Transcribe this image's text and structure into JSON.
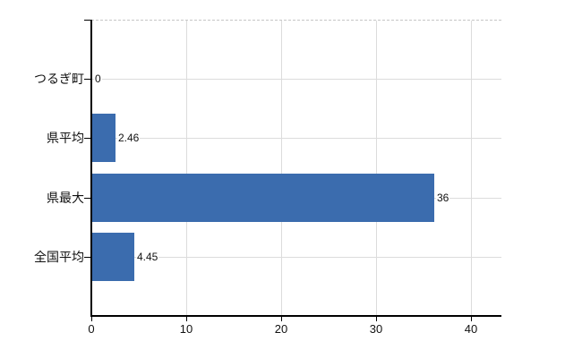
{
  "chart_data": {
    "type": "bar",
    "orientation": "horizontal",
    "title": "",
    "xlabel": "",
    "ylabel": "",
    "categories": [
      "つるぎ町",
      "県平均",
      "県最大",
      "全国平均"
    ],
    "values": [
      0,
      2.46,
      36,
      4.45
    ],
    "data_labels": [
      "0",
      "2.46",
      "36",
      "4.45"
    ],
    "x_ticks": [
      "0",
      "10",
      "20",
      "30",
      "40"
    ],
    "x_tick_values": [
      0,
      10,
      20,
      30,
      40
    ],
    "xlim": [
      0,
      43.2
    ],
    "grid": true,
    "legend": false,
    "colors": {
      "bar": "#3b6cae",
      "axis": "#000000",
      "gridline": "#dcdcdc",
      "top_border": "#c6c6c6",
      "text": "#111111",
      "background": "#ffffff"
    }
  }
}
